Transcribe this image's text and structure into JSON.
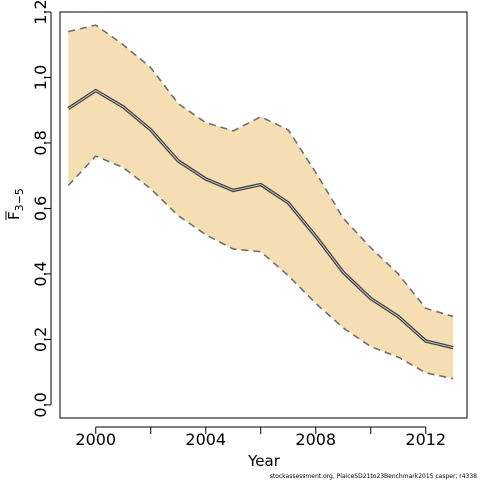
{
  "chart_data": {
    "type": "area",
    "xlabel": "Year",
    "ylabel": {
      "main": "F",
      "subscript": "3−5"
    },
    "xlim": [
      1998.7,
      2013.5
    ],
    "ylim": [
      -0.04,
      1.2
    ],
    "x_ticks": [
      2000,
      2002,
      2004,
      2006,
      2008,
      2010,
      2012
    ],
    "x_tick_labels": [
      "2000",
      "2004",
      "2008",
      "2012"
    ],
    "x_labeled_ticks": [
      2000,
      2004,
      2008,
      2012
    ],
    "y_ticks": [
      0.0,
      0.2,
      0.4,
      0.6,
      0.8,
      1.0,
      1.2
    ],
    "y_tick_labels": [
      "0.0",
      "0.2",
      "0.4",
      "0.6",
      "0.8",
      "1.0",
      "1.2"
    ],
    "x": [
      1999,
      2000,
      2001,
      2002,
      2003,
      2004,
      2005,
      2006,
      2007,
      2008,
      2009,
      2010,
      2011,
      2012,
      2013
    ],
    "series": [
      {
        "role": "estimate",
        "values": [
          0.905,
          0.96,
          0.91,
          0.84,
          0.745,
          0.69,
          0.655,
          0.673,
          0.617,
          0.515,
          0.405,
          0.325,
          0.27,
          0.195,
          0.175
        ]
      },
      {
        "role": "upper",
        "values": [
          1.14,
          1.16,
          1.1,
          1.03,
          0.92,
          0.862,
          0.837,
          0.88,
          0.84,
          0.71,
          0.57,
          0.48,
          0.4,
          0.295,
          0.27
        ]
      },
      {
        "role": "lower",
        "values": [
          0.67,
          0.76,
          0.725,
          0.66,
          0.578,
          0.52,
          0.476,
          0.468,
          0.395,
          0.31,
          0.235,
          0.178,
          0.146,
          0.098,
          0.08
        ]
      }
    ],
    "colors": {
      "band": "#f5deb3",
      "band_edge": "#707070",
      "estimate_outer": "#444444",
      "estimate_inner": "#c8c8c8",
      "axis": "#000000"
    },
    "grid": false,
    "legend": "none"
  },
  "footnote": "stockassessment.org,  PlaiceSD21to23Benchmark2015  casper,  r4338"
}
